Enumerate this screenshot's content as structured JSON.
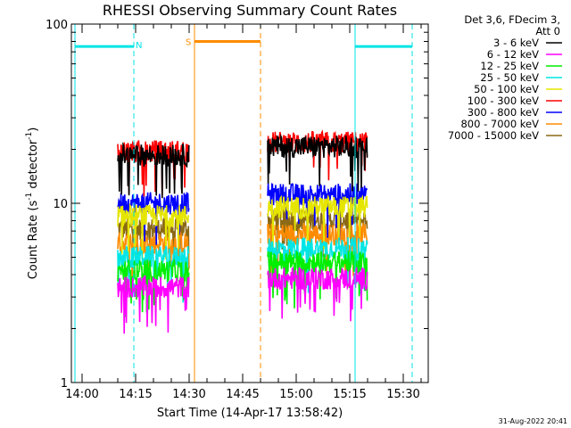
{
  "chart_data": {
    "type": "line",
    "title": "RHESSI Observing Summary Count Rates",
    "xlabel": "Start Time (14-Apr-17 13:58:42)",
    "ylabel_prefix": "Count Rate (s",
    "ylabel_sup1": "-1",
    "ylabel_mid": " detector",
    "ylabel_sup2": "-1",
    "ylabel_suffix": ")",
    "y_scale": "log",
    "ylim": [
      1,
      100
    ],
    "xlim_minutes": [
      -3,
      97
    ],
    "y_ticks": [
      {
        "value": 1,
        "label": "1"
      },
      {
        "value": 10,
        "label": "10"
      },
      {
        "value": 100,
        "label": "100"
      }
    ],
    "x_ticks": [
      {
        "value": 0,
        "label": "14:00"
      },
      {
        "value": 15,
        "label": "14:15"
      },
      {
        "value": 30,
        "label": "14:30"
      },
      {
        "value": 45,
        "label": "14:45"
      },
      {
        "value": 60,
        "label": "15:00"
      },
      {
        "value": 75,
        "label": "15:15"
      },
      {
        "value": 90,
        "label": "15:30"
      }
    ],
    "legend_header": [
      "Det 3,6, FDecim 3,",
      "Att 0"
    ],
    "series": [
      {
        "name": "3 - 6 keV",
        "color": "#000000",
        "level": 18.5
      },
      {
        "name": "6 - 12 keV",
        "color": "#ff00ff",
        "level": 3.4
      },
      {
        "name": "12 - 25 keV",
        "color": "#00ee00",
        "level": 4.2
      },
      {
        "name": "25 - 50 keV",
        "color": "#00e5e5",
        "level": 5.0
      },
      {
        "name": "50 - 100 keV",
        "color": "#e5e500",
        "level": 8.5
      },
      {
        "name": "100 - 300 keV",
        "color": "#ff0000",
        "level": 19.5
      },
      {
        "name": "300 - 800 keV",
        "color": "#0000ff",
        "level": 10.0
      },
      {
        "name": "800 - 7000 keV",
        "color": "#ff8c00",
        "level": 6.0
      },
      {
        "name": "7000 - 15000 keV",
        "color": "#8b6914",
        "level": 7.2
      }
    ],
    "data_intervals_minutes": [
      [
        10,
        30
      ],
      [
        52,
        80
      ]
    ],
    "events": [
      {
        "label": "N",
        "color": "#00e5e5",
        "start_minutes": -2,
        "end_minutes": 14.5,
        "y": 75
      },
      {
        "label": "S",
        "color": "#ff8c00",
        "start_minutes": 31.5,
        "end_minutes": 50,
        "y": 80
      },
      {
        "label": "",
        "color": "#00e5e5",
        "start_minutes": 76.5,
        "end_minutes": 92.5,
        "y": 75
      }
    ],
    "grid": false,
    "legend_position": "right"
  },
  "footer_stamp": "31-Aug-2022 20:41"
}
